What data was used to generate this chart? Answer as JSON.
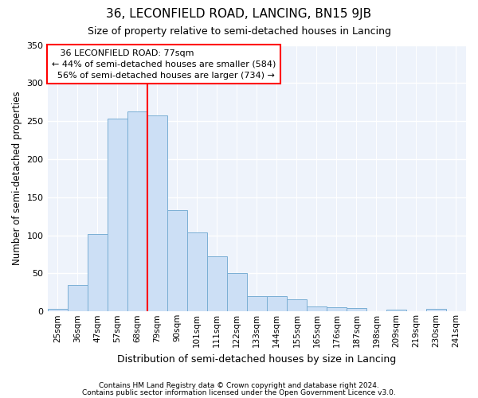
{
  "title": "36, LECONFIELD ROAD, LANCING, BN15 9JB",
  "subtitle": "Size of property relative to semi-detached houses in Lancing",
  "xlabel": "Distribution of semi-detached houses by size in Lancing",
  "ylabel": "Number of semi-detached properties",
  "categories": [
    "25sqm",
    "36sqm",
    "47sqm",
    "57sqm",
    "68sqm",
    "79sqm",
    "90sqm",
    "101sqm",
    "111sqm",
    "122sqm",
    "133sqm",
    "144sqm",
    "155sqm",
    "165sqm",
    "176sqm",
    "187sqm",
    "198sqm",
    "209sqm",
    "219sqm",
    "230sqm",
    "241sqm"
  ],
  "values": [
    3,
    35,
    102,
    253,
    263,
    257,
    133,
    104,
    72,
    50,
    20,
    20,
    16,
    7,
    5,
    4,
    0,
    2,
    0,
    3,
    0
  ],
  "bar_color": "#ccdff5",
  "bar_edge_color": "#7aafd4",
  "red_line_index": 5,
  "annotation_title": "36 LECONFIELD ROAD: 77sqm",
  "annotation_line1": "← 44% of semi-detached houses are smaller (584)",
  "annotation_line2": "56% of semi-detached houses are larger (734) →",
  "ylim": [
    0,
    350
  ],
  "yticks": [
    0,
    50,
    100,
    150,
    200,
    250,
    300,
    350
  ],
  "footer_line1": "Contains HM Land Registry data © Crown copyright and database right 2024.",
  "footer_line2": "Contains public sector information licensed under the Open Government Licence v3.0.",
  "bg_color": "#eef3fb"
}
